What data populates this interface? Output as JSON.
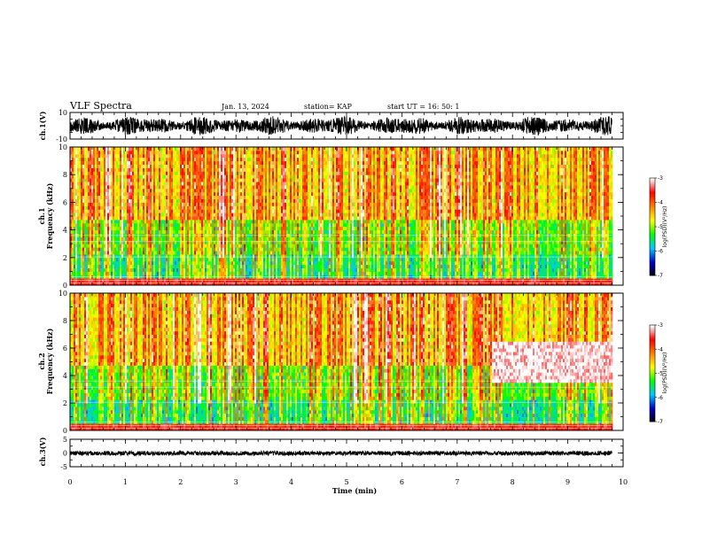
{
  "header": {
    "title": "VLF Spectra",
    "date": "Jan. 13, 2024",
    "station": "station= KAP",
    "start": "start  UT =   16: 50: 1"
  },
  "chart_data": [
    {
      "type": "line",
      "id": "ch1-waveform",
      "ylabel": "ch.1(V)",
      "ylim": [
        -10,
        10
      ],
      "yticks": [
        "10",
        "-10"
      ],
      "xlim": [
        0,
        10
      ],
      "note_values": "dense noisy waveform spanning roughly -8 to 8 V, continuous across 0 to 9.8 min"
    },
    {
      "type": "heatmap",
      "id": "ch1-spectrogram",
      "ylabel_top": "ch.1",
      "ylabel": "Frequency  (kHz)",
      "ylim": [
        0,
        10
      ],
      "yticks": [
        "0",
        "2",
        "4",
        "6",
        "8",
        "10"
      ],
      "xlim": [
        0,
        10
      ],
      "data_extent_min": 9.8,
      "colorbar": {
        "label": "log(PSD)(V²/Hz)",
        "range": [
          -7,
          -3
        ],
        "ticks": [
          "-3",
          "-4",
          "-5",
          "-6",
          "-7"
        ]
      }
    },
    {
      "type": "heatmap",
      "id": "ch2-spectrogram",
      "ylabel_top": "ch.2",
      "ylabel": "Frequency  (kHz)",
      "ylim": [
        0,
        10
      ],
      "yticks": [
        "0",
        "2",
        "4",
        "6",
        "8",
        "10"
      ],
      "xlim": [
        0,
        10
      ],
      "data_extent_min": 9.8,
      "colorbar": {
        "label": "log(PSD)(V²/Hz)",
        "range": [
          -7,
          -3
        ],
        "ticks": [
          "-3",
          "-4",
          "-5",
          "-6",
          "-7"
        ]
      }
    },
    {
      "type": "line",
      "id": "ch3-waveform",
      "ylabel": "ch.3(V)",
      "ylim": [
        -5,
        5
      ],
      "yticks": [
        "5",
        "0",
        "-5"
      ],
      "xlim": [
        0,
        10
      ],
      "note_values": "narrow band around 0 V (about -0.8 to 0.8 V) across 0 to 9.8 min"
    }
  ],
  "xaxis": {
    "label": "Time  (min)",
    "ticks": [
      "0",
      "1",
      "2",
      "3",
      "4",
      "5",
      "6",
      "7",
      "8",
      "9",
      "10"
    ]
  },
  "colors": {
    "frame": "#000000",
    "colormap": [
      "#000000",
      "#0000c8",
      "#00c8ff",
      "#00ff00",
      "#ffff00",
      "#ff8000",
      "#ff0000",
      "#ffffff"
    ]
  }
}
